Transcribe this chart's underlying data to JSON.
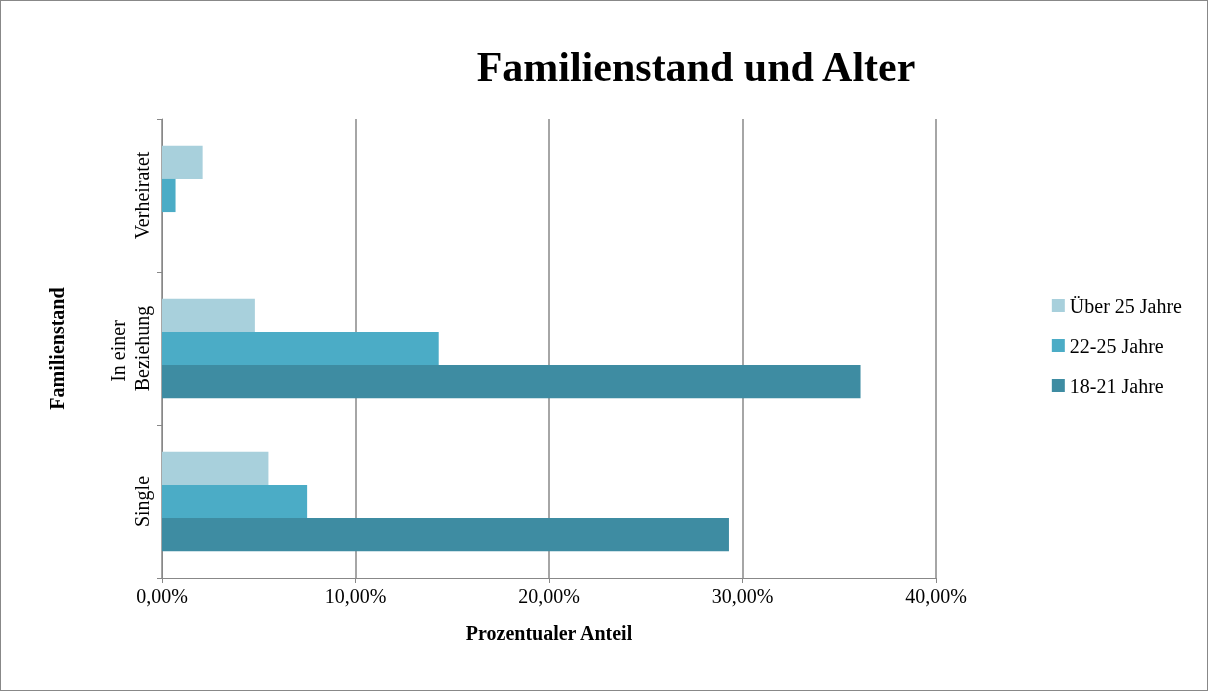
{
  "chart_data": {
    "type": "bar",
    "orientation": "horizontal",
    "title": "Familienstand und Alter",
    "xlabel": "Prozentualer Anteil",
    "ylabel": "Familienstand",
    "categories": [
      "Verheiratet",
      "In einer Beziehung",
      "Single"
    ],
    "series": [
      {
        "name": "Über 25 Jahre",
        "color": "#a8d0dc",
        "values": [
          2.1,
          4.8,
          5.5
        ]
      },
      {
        "name": "22-25 Jahre",
        "color": "#4bacc6",
        "values": [
          0.7,
          14.3,
          7.5
        ]
      },
      {
        "name": "18-21 Jahre",
        "color": "#3e8ca2",
        "values": [
          null,
          36.1,
          29.3
        ]
      }
    ],
    "xlim": [
      0,
      40
    ],
    "xticks": [
      {
        "value": 0,
        "label": "0,00%"
      },
      {
        "value": 10,
        "label": "10,00%"
      },
      {
        "value": 20,
        "label": "20,00%"
      },
      {
        "value": 30,
        "label": "30,00%"
      },
      {
        "value": 40,
        "label": "40,00%"
      }
    ],
    "grid": "x",
    "legend": "right"
  }
}
